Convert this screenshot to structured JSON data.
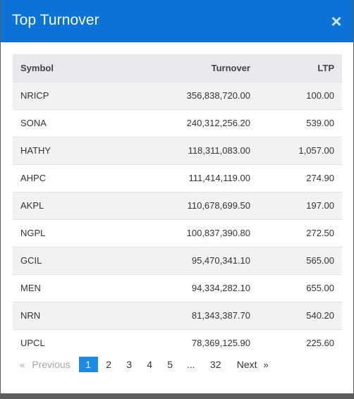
{
  "modal": {
    "title": "Top Turnover",
    "close_label": "×"
  },
  "table": {
    "headers": {
      "symbol": "Symbol",
      "turnover": "Turnover",
      "ltp": "LTP"
    },
    "rows": [
      {
        "symbol": "NRICP",
        "turnover": "356,838,720.00",
        "ltp": "100.00"
      },
      {
        "symbol": "SONA",
        "turnover": "240,312,256.20",
        "ltp": "539.00"
      },
      {
        "symbol": "HATHY",
        "turnover": "118,311,083.00",
        "ltp": "1,057.00"
      },
      {
        "symbol": "AHPC",
        "turnover": "111,414,119.00",
        "ltp": "274.90"
      },
      {
        "symbol": "AKPL",
        "turnover": "110,678,699.50",
        "ltp": "197.00"
      },
      {
        "symbol": "NGPL",
        "turnover": "100,837,390.80",
        "ltp": "272.50"
      },
      {
        "symbol": "GCIL",
        "turnover": "95,470,341.10",
        "ltp": "565.00"
      },
      {
        "symbol": "MEN",
        "turnover": "94,334,282.10",
        "ltp": "655.00"
      },
      {
        "symbol": "NRN",
        "turnover": "81,343,387.70",
        "ltp": "540.20"
      },
      {
        "symbol": "UPCL",
        "turnover": "78,369,125.90",
        "ltp": "225.60"
      }
    ]
  },
  "pagination": {
    "prev_arrow": "«",
    "prev_label": "Previous",
    "pages": [
      "1",
      "2",
      "3",
      "4",
      "5"
    ],
    "active_page": "1",
    "ellipsis": "...",
    "last_page": "32",
    "next_label": "Next",
    "next_arrow": "»"
  },
  "colors": {
    "header_bg": "#0b72d6",
    "active_page_bg": "#1a8ce8"
  }
}
